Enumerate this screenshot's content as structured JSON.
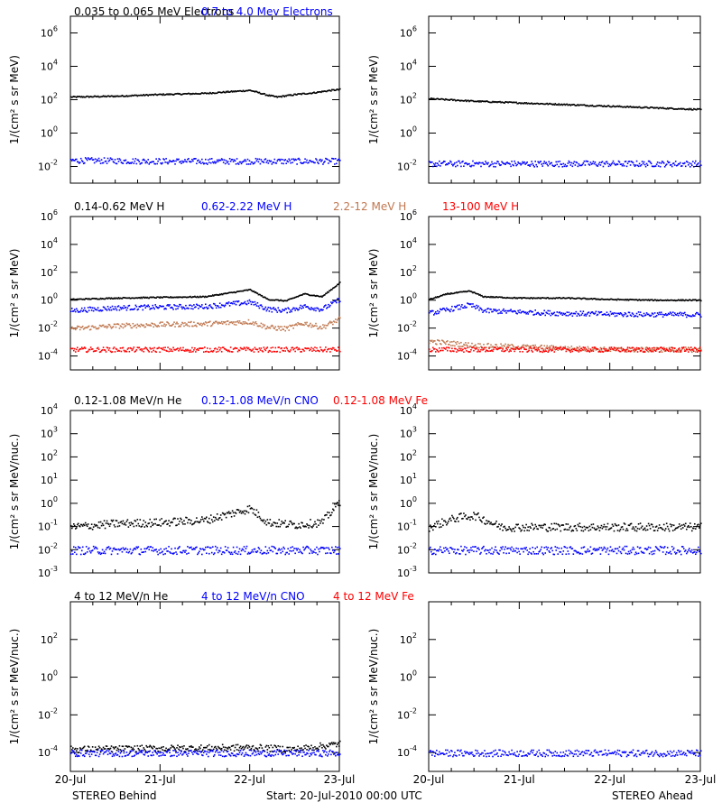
{
  "footer": {
    "left": "STEREO Behind",
    "center": "Start: 20-Jul-2010 00:00 UTC",
    "right": "STEREO Ahead"
  },
  "x_ticks": [
    "20-Jul",
    "21-Jul",
    "22-Jul",
    "23-Jul"
  ],
  "colors": {
    "black": "#000000",
    "blue": "#0000ff",
    "tan": "#c07850",
    "red": "#ff0000"
  },
  "chart_data": [
    {
      "type": "scatter",
      "row": 1,
      "ylabel": "1/(cm² s sr MeV)",
      "yscale": "log",
      "ylim_exp": [
        -3,
        7
      ],
      "ytick_exps": [
        -2,
        0,
        2,
        4,
        6
      ],
      "legend": [
        {
          "label": "0.035 to 0.065 MeV Electrons",
          "color": "#000000"
        },
        {
          "label": "0.7 to 4.0 Mev Electrons",
          "color": "#0000ff"
        }
      ],
      "panels": {
        "behind": [
          {
            "color": "#000000",
            "points": [
              [
                0,
                2.2
              ],
              [
                0.5,
                2.25
              ],
              [
                1.0,
                2.35
              ],
              [
                1.5,
                2.42
              ],
              [
                2.0,
                2.6
              ],
              [
                2.2,
                2.3
              ],
              [
                2.3,
                2.2
              ],
              [
                2.5,
                2.35
              ],
              [
                2.7,
                2.45
              ],
              [
                2.9,
                2.6
              ],
              [
                3.0,
                2.65
              ]
            ]
          },
          {
            "color": "#0000ff",
            "points": [
              [
                0,
                -1.6
              ],
              [
                1,
                -1.65
              ],
              [
                2,
                -1.65
              ],
              [
                3,
                -1.65
              ]
            ]
          }
        ],
        "ahead": [
          {
            "color": "#000000",
            "points": [
              [
                0,
                2.1
              ],
              [
                0.5,
                1.95
              ],
              [
                1.0,
                1.85
              ],
              [
                1.5,
                1.75
              ],
              [
                2.0,
                1.65
              ],
              [
                2.5,
                1.55
              ],
              [
                3.0,
                1.45
              ]
            ]
          },
          {
            "color": "#0000ff",
            "points": [
              [
                0,
                -1.8
              ],
              [
                1,
                -1.8
              ],
              [
                2,
                -1.8
              ],
              [
                3,
                -1.8
              ]
            ]
          }
        ]
      }
    },
    {
      "type": "scatter",
      "row": 2,
      "ylabel": "1/(cm² s sr MeV)",
      "yscale": "log",
      "ylim_exp": [
        -5,
        6
      ],
      "ytick_exps": [
        -4,
        -2,
        0,
        2,
        4,
        6
      ],
      "legend": [
        {
          "label": "0.14-0.62 MeV H",
          "color": "#000000"
        },
        {
          "label": "0.62-2.22 MeV H",
          "color": "#0000ff"
        },
        {
          "label": "2.2-12 MeV H",
          "color": "#c07850"
        },
        {
          "label": "13-100 MeV H",
          "color": "#ff0000"
        }
      ],
      "panels": {
        "behind": [
          {
            "color": "#000000",
            "points": [
              [
                0,
                0.1
              ],
              [
                0.5,
                0.2
              ],
              [
                1.0,
                0.25
              ],
              [
                1.5,
                0.3
              ],
              [
                2.0,
                0.8
              ],
              [
                2.2,
                0.1
              ],
              [
                2.4,
                0.0
              ],
              [
                2.6,
                0.5
              ],
              [
                2.8,
                0.3
              ],
              [
                3.0,
                1.3
              ]
            ]
          },
          {
            "color": "#0000ff",
            "points": [
              [
                0,
                -0.7
              ],
              [
                0.5,
                -0.5
              ],
              [
                1.0,
                -0.45
              ],
              [
                1.5,
                -0.4
              ],
              [
                2.0,
                -0.1
              ],
              [
                2.2,
                -0.6
              ],
              [
                2.4,
                -0.7
              ],
              [
                2.6,
                -0.4
              ],
              [
                2.8,
                -0.6
              ],
              [
                3.0,
                0.1
              ]
            ]
          },
          {
            "color": "#c07850",
            "points": [
              [
                0,
                -2.0
              ],
              [
                0.5,
                -1.8
              ],
              [
                1.0,
                -1.7
              ],
              [
                1.5,
                -1.65
              ],
              [
                2.0,
                -1.5
              ],
              [
                2.2,
                -1.9
              ],
              [
                2.4,
                -2.0
              ],
              [
                2.6,
                -1.6
              ],
              [
                2.8,
                -1.9
              ],
              [
                3.0,
                -1.3
              ]
            ]
          },
          {
            "color": "#ff0000",
            "points": [
              [
                0,
                -3.5
              ],
              [
                1,
                -3.5
              ],
              [
                2,
                -3.5
              ],
              [
                3,
                -3.5
              ]
            ]
          }
        ],
        "ahead": [
          {
            "color": "#000000",
            "points": [
              [
                0,
                0.1
              ],
              [
                0.2,
                0.5
              ],
              [
                0.45,
                0.7
              ],
              [
                0.6,
                0.3
              ],
              [
                1.0,
                0.2
              ],
              [
                1.5,
                0.2
              ],
              [
                2.0,
                0.1
              ],
              [
                2.5,
                0.05
              ],
              [
                3.0,
                0.05
              ]
            ]
          },
          {
            "color": "#0000ff",
            "points": [
              [
                0,
                -0.9
              ],
              [
                0.45,
                -0.3
              ],
              [
                0.6,
                -0.7
              ],
              [
                1.0,
                -0.8
              ],
              [
                1.5,
                -0.9
              ],
              [
                2.0,
                -0.95
              ],
              [
                3.0,
                -1.0
              ]
            ]
          },
          {
            "color": "#c07850",
            "points": [
              [
                0,
                -2.9
              ],
              [
                0.5,
                -3.2
              ],
              [
                1.0,
                -3.3
              ],
              [
                1.5,
                -3.4
              ],
              [
                2.0,
                -3.5
              ],
              [
                3.0,
                -3.5
              ]
            ]
          },
          {
            "color": "#ff0000",
            "points": [
              [
                0,
                -3.5
              ],
              [
                1,
                -3.5
              ],
              [
                2,
                -3.5
              ],
              [
                3,
                -3.5
              ]
            ]
          }
        ]
      }
    },
    {
      "type": "scatter",
      "row": 3,
      "ylabel": "1/(cm² s sr MeV/nuc.)",
      "yscale": "log",
      "ylim_exp": [
        -3,
        4
      ],
      "ytick_exps": [
        -3,
        -2,
        -1,
        0,
        1,
        2,
        3,
        4
      ],
      "legend": [
        {
          "label": "0.12-1.08 MeV/n He",
          "color": "#000000"
        },
        {
          "label": "0.12-1.08 MeV/n CNO",
          "color": "#0000ff"
        },
        {
          "label": "0.12-1.08 MeV Fe",
          "color": "#ff0000"
        }
      ],
      "panels": {
        "behind": [
          {
            "color": "#000000",
            "points": [
              [
                0,
                -1.0
              ],
              [
                0.5,
                -0.85
              ],
              [
                1.0,
                -0.8
              ],
              [
                1.5,
                -0.7
              ],
              [
                2.0,
                -0.2
              ],
              [
                2.2,
                -0.8
              ],
              [
                2.5,
                -0.9
              ],
              [
                2.8,
                -0.8
              ],
              [
                3.0,
                0.1
              ]
            ]
          },
          {
            "color": "#0000ff",
            "points": [
              [
                0,
                -2.0
              ],
              [
                1,
                -2.0
              ],
              [
                2,
                -2.0
              ],
              [
                3,
                -2.0
              ]
            ]
          }
        ],
        "ahead": [
          {
            "color": "#000000",
            "points": [
              [
                0,
                -1.0
              ],
              [
                0.3,
                -0.6
              ],
              [
                0.5,
                -0.5
              ],
              [
                0.8,
                -1.0
              ],
              [
                1.5,
                -1.0
              ],
              [
                2.0,
                -1.0
              ],
              [
                3.0,
                -1.0
              ]
            ]
          },
          {
            "color": "#0000ff",
            "points": [
              [
                0,
                -2.0
              ],
              [
                1,
                -2.0
              ],
              [
                2,
                -2.0
              ],
              [
                3,
                -2.0
              ]
            ]
          }
        ]
      }
    },
    {
      "type": "scatter",
      "row": 4,
      "ylabel": "1/(cm² s sr MeV/nuc.)",
      "yscale": "log",
      "ylim_exp": [
        -5,
        4
      ],
      "ytick_exps": [
        -4,
        -2,
        0,
        2
      ],
      "legend": [
        {
          "label": "4 to 12 MeV/n He",
          "color": "#000000"
        },
        {
          "label": "4 to 12 MeV/n CNO",
          "color": "#0000ff"
        },
        {
          "label": "4 to 12 MeV Fe",
          "color": "#ff0000"
        }
      ],
      "panels": {
        "behind": [
          {
            "color": "#000000",
            "points": [
              [
                0,
                -3.8
              ],
              [
                1,
                -3.75
              ],
              [
                2,
                -3.7
              ],
              [
                2.5,
                -3.8
              ],
              [
                3.0,
                -3.5
              ]
            ]
          },
          {
            "color": "#0000ff",
            "points": [
              [
                0,
                -4.0
              ],
              [
                1,
                -4.0
              ],
              [
                2,
                -4.0
              ],
              [
                3,
                -4.0
              ]
            ]
          }
        ],
        "ahead": [
          {
            "color": "#0000ff",
            "points": [
              [
                0,
                -4.0
              ],
              [
                1,
                -4.0
              ],
              [
                2,
                -4.0
              ],
              [
                3,
                -4.0
              ]
            ]
          }
        ]
      }
    }
  ]
}
